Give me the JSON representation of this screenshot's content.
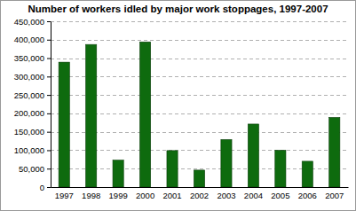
{
  "chart_data": {
    "type": "bar",
    "title": "Number of workers idled by major work stoppages, 1997-2007",
    "categories": [
      "1997",
      "1998",
      "1999",
      "2000",
      "2001",
      "2002",
      "2003",
      "2004",
      "2005",
      "2006",
      "2007"
    ],
    "values": [
      339000,
      387000,
      73000,
      394000,
      99000,
      46000,
      129000,
      171000,
      100000,
      70000,
      189000
    ],
    "color": "#0e6b0e",
    "ylim": [
      0,
      450000
    ],
    "yticks": [
      0,
      {
        "value": 50000,
        "label": "50,000"
      },
      {
        "value": 100000,
        "label": "100,000"
      },
      {
        "value": 150000,
        "label": "150,000"
      },
      {
        "value": 200000,
        "label": "200,000"
      },
      {
        "value": 250000,
        "label": "250,000"
      },
      {
        "value": 300000,
        "label": "300,000"
      },
      {
        "value": 350000,
        "label": "350,000"
      },
      {
        "value": 400000,
        "label": "400,000"
      },
      {
        "value": 450000,
        "label": "450,000"
      }
    ],
    "grid": true
  }
}
